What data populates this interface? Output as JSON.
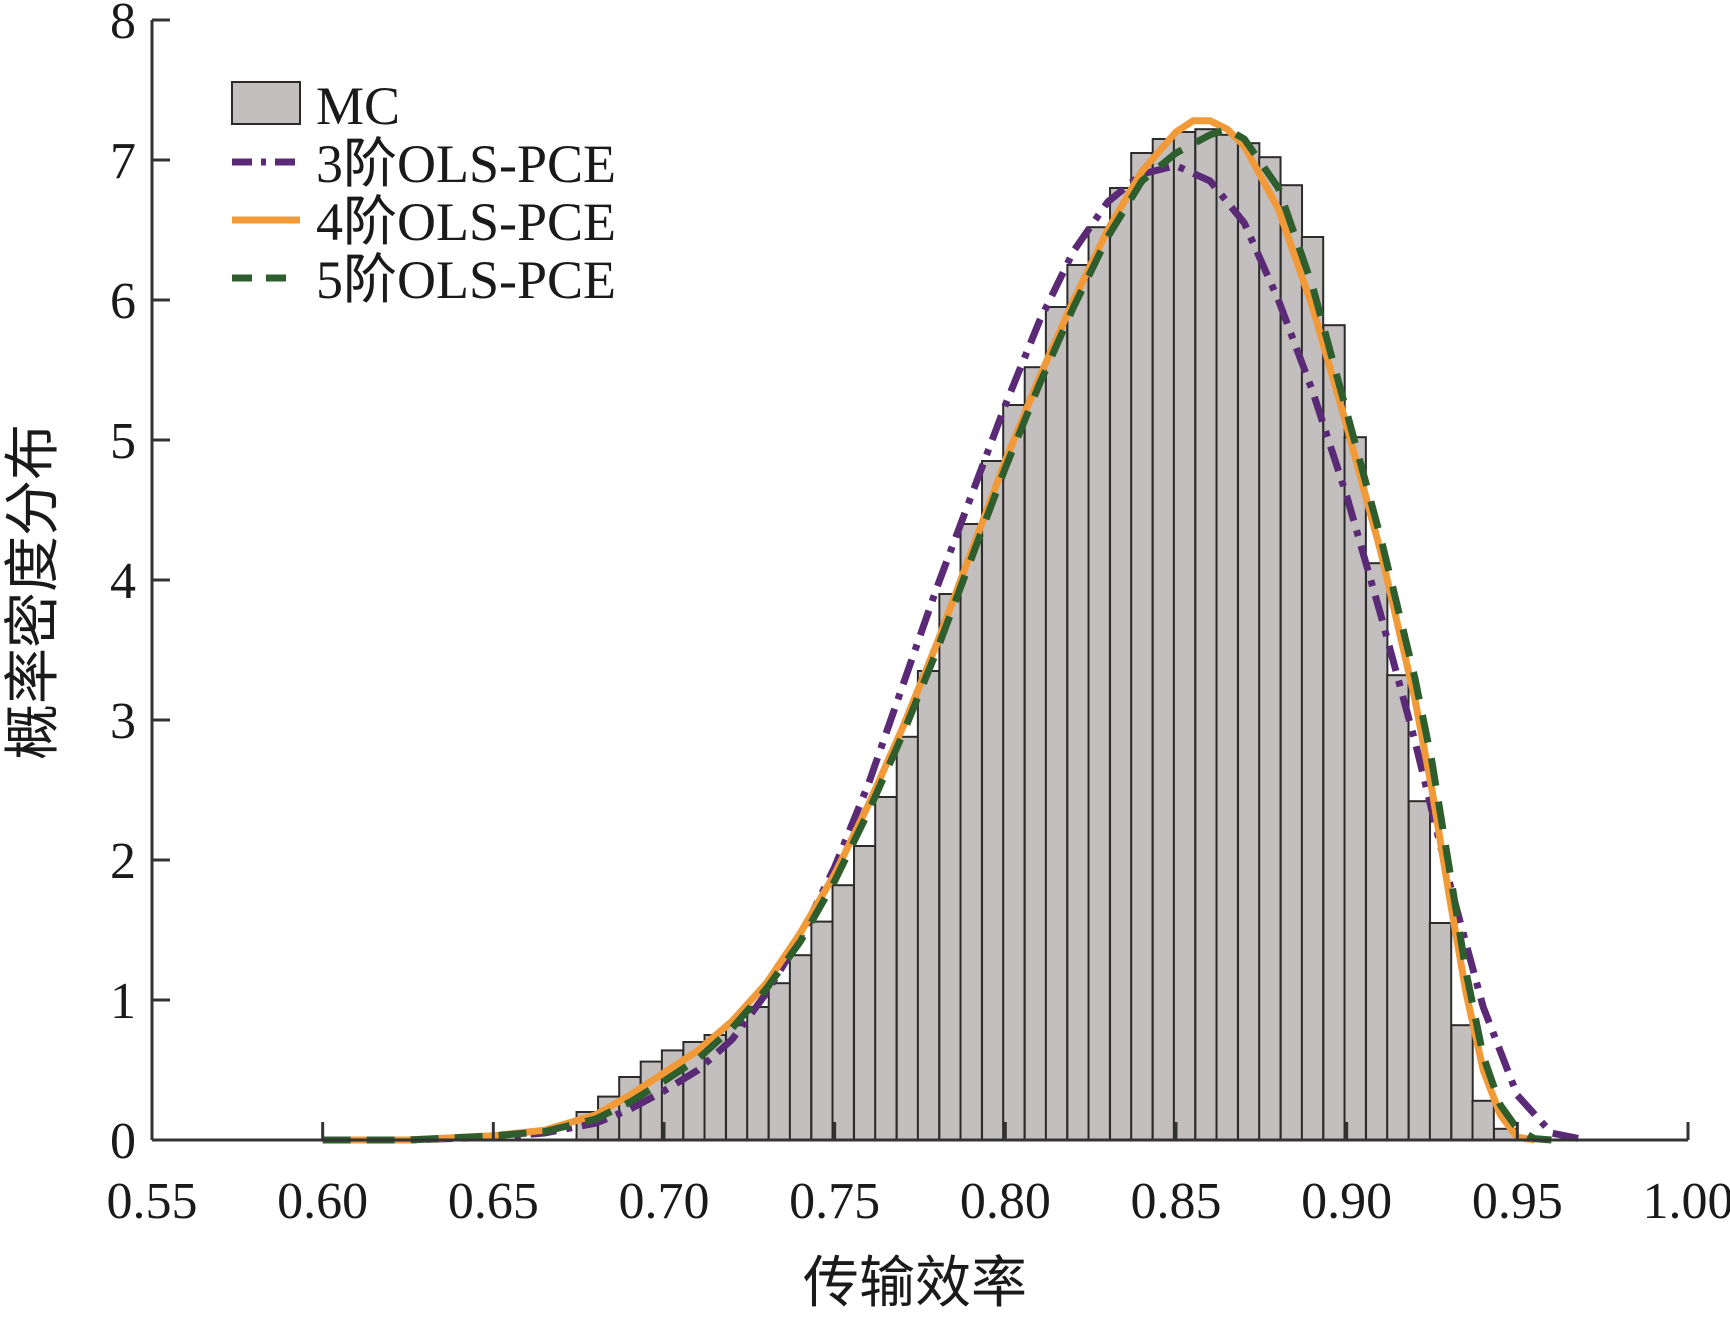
{
  "chart_data": {
    "type": "bar",
    "title": "",
    "xlabel": "传输效率",
    "ylabel": "概率密度分布",
    "xlim": [
      0.55,
      1.0
    ],
    "ylim": [
      0,
      8
    ],
    "x_ticks": [
      "0.55",
      "0.60",
      "0.65",
      "0.70",
      "0.75",
      "0.80",
      "0.85",
      "0.90",
      "0.95",
      "1.00"
    ],
    "y_ticks": [
      "0",
      "1",
      "2",
      "3",
      "4",
      "5",
      "6",
      "7",
      "8"
    ],
    "grid": false,
    "legend_position": "top-left",
    "histogram": {
      "name": "MC",
      "color": "#c4bfbf",
      "bin_width": 0.00625,
      "bins": [
        [
          0.6775,
          0.2
        ],
        [
          0.6838,
          0.31
        ],
        [
          0.69,
          0.45
        ],
        [
          0.6963,
          0.56
        ],
        [
          0.7025,
          0.64
        ],
        [
          0.7088,
          0.7
        ],
        [
          0.715,
          0.75
        ],
        [
          0.7213,
          0.82
        ],
        [
          0.7275,
          0.95
        ],
        [
          0.7338,
          1.12
        ],
        [
          0.74,
          1.32
        ],
        [
          0.7463,
          1.56
        ],
        [
          0.7525,
          1.82
        ],
        [
          0.7588,
          2.1
        ],
        [
          0.765,
          2.45
        ],
        [
          0.7713,
          2.88
        ],
        [
          0.7775,
          3.35
        ],
        [
          0.7838,
          3.9
        ],
        [
          0.79,
          4.4
        ],
        [
          0.7963,
          4.85
        ],
        [
          0.8025,
          5.25
        ],
        [
          0.8088,
          5.52
        ],
        [
          0.815,
          5.95
        ],
        [
          0.8213,
          6.25
        ],
        [
          0.8275,
          6.52
        ],
        [
          0.8338,
          6.8
        ],
        [
          0.84,
          7.05
        ],
        [
          0.8463,
          7.15
        ],
        [
          0.8525,
          7.2
        ],
        [
          0.8588,
          7.22
        ],
        [
          0.865,
          7.18
        ],
        [
          0.8713,
          7.12
        ],
        [
          0.8775,
          7.02
        ],
        [
          0.8838,
          6.82
        ],
        [
          0.89,
          6.45
        ],
        [
          0.8963,
          5.82
        ],
        [
          0.9025,
          5.02
        ],
        [
          0.9088,
          4.12
        ],
        [
          0.915,
          3.32
        ],
        [
          0.9213,
          2.42
        ],
        [
          0.9275,
          1.55
        ],
        [
          0.9338,
          0.82
        ],
        [
          0.94,
          0.28
        ],
        [
          0.9463,
          0.08
        ]
      ]
    },
    "series": [
      {
        "name": "3阶OLS-PCE",
        "color": "#5a2a77",
        "style": "dash-dot",
        "points": [
          [
            0.6,
            0.0
          ],
          [
            0.625,
            0.0
          ],
          [
            0.65,
            0.02
          ],
          [
            0.665,
            0.05
          ],
          [
            0.68,
            0.12
          ],
          [
            0.69,
            0.22
          ],
          [
            0.7,
            0.35
          ],
          [
            0.71,
            0.5
          ],
          [
            0.72,
            0.72
          ],
          [
            0.73,
            1.05
          ],
          [
            0.74,
            1.45
          ],
          [
            0.75,
            1.95
          ],
          [
            0.76,
            2.55
          ],
          [
            0.77,
            3.25
          ],
          [
            0.78,
            3.95
          ],
          [
            0.79,
            4.6
          ],
          [
            0.8,
            5.25
          ],
          [
            0.81,
            5.85
          ],
          [
            0.82,
            6.35
          ],
          [
            0.83,
            6.7
          ],
          [
            0.84,
            6.9
          ],
          [
            0.85,
            6.96
          ],
          [
            0.86,
            6.85
          ],
          [
            0.87,
            6.55
          ],
          [
            0.88,
            6.0
          ],
          [
            0.89,
            5.35
          ],
          [
            0.9,
            4.6
          ],
          [
            0.91,
            3.75
          ],
          [
            0.92,
            2.85
          ],
          [
            0.93,
            1.85
          ],
          [
            0.94,
            0.95
          ],
          [
            0.95,
            0.32
          ],
          [
            0.96,
            0.05
          ],
          [
            0.97,
            0.0
          ]
        ]
      },
      {
        "name": "4阶OLS-PCE",
        "color": "#f29a38",
        "style": "solid",
        "points": [
          [
            0.6,
            0.0
          ],
          [
            0.625,
            0.0
          ],
          [
            0.65,
            0.03
          ],
          [
            0.665,
            0.07
          ],
          [
            0.68,
            0.18
          ],
          [
            0.69,
            0.32
          ],
          [
            0.7,
            0.48
          ],
          [
            0.71,
            0.64
          ],
          [
            0.72,
            0.85
          ],
          [
            0.73,
            1.12
          ],
          [
            0.74,
            1.48
          ],
          [
            0.75,
            1.9
          ],
          [
            0.76,
            2.4
          ],
          [
            0.77,
            2.95
          ],
          [
            0.78,
            3.55
          ],
          [
            0.79,
            4.2
          ],
          [
            0.8,
            4.85
          ],
          [
            0.81,
            5.45
          ],
          [
            0.82,
            6.0
          ],
          [
            0.83,
            6.5
          ],
          [
            0.84,
            6.92
          ],
          [
            0.85,
            7.2
          ],
          [
            0.855,
            7.28
          ],
          [
            0.86,
            7.28
          ],
          [
            0.865,
            7.22
          ],
          [
            0.87,
            7.1
          ],
          [
            0.88,
            6.65
          ],
          [
            0.89,
            5.95
          ],
          [
            0.9,
            5.1
          ],
          [
            0.91,
            4.2
          ],
          [
            0.92,
            3.15
          ],
          [
            0.925,
            2.5
          ],
          [
            0.93,
            1.75
          ],
          [
            0.935,
            1.05
          ],
          [
            0.94,
            0.5
          ],
          [
            0.945,
            0.18
          ],
          [
            0.95,
            0.02
          ],
          [
            0.955,
            0.0
          ]
        ]
      },
      {
        "name": "5阶OLS-PCE",
        "color": "#2e5e2e",
        "style": "dashed",
        "points": [
          [
            0.6,
            0.0
          ],
          [
            0.625,
            0.0
          ],
          [
            0.65,
            0.03
          ],
          [
            0.665,
            0.06
          ],
          [
            0.68,
            0.15
          ],
          [
            0.69,
            0.27
          ],
          [
            0.7,
            0.42
          ],
          [
            0.71,
            0.58
          ],
          [
            0.72,
            0.8
          ],
          [
            0.73,
            1.08
          ],
          [
            0.74,
            1.42
          ],
          [
            0.75,
            1.85
          ],
          [
            0.76,
            2.35
          ],
          [
            0.77,
            2.9
          ],
          [
            0.78,
            3.5
          ],
          [
            0.79,
            4.15
          ],
          [
            0.8,
            4.8
          ],
          [
            0.81,
            5.4
          ],
          [
            0.82,
            5.95
          ],
          [
            0.83,
            6.45
          ],
          [
            0.84,
            6.85
          ],
          [
            0.85,
            7.05
          ],
          [
            0.86,
            7.18
          ],
          [
            0.865,
            7.22
          ],
          [
            0.87,
            7.15
          ],
          [
            0.88,
            6.8
          ],
          [
            0.89,
            6.1
          ],
          [
            0.9,
            5.2
          ],
          [
            0.91,
            4.3
          ],
          [
            0.92,
            3.3
          ],
          [
            0.925,
            2.7
          ],
          [
            0.93,
            1.95
          ],
          [
            0.935,
            1.2
          ],
          [
            0.94,
            0.6
          ],
          [
            0.945,
            0.25
          ],
          [
            0.95,
            0.08
          ],
          [
            0.955,
            0.01
          ],
          [
            0.96,
            0.0
          ]
        ]
      }
    ]
  }
}
